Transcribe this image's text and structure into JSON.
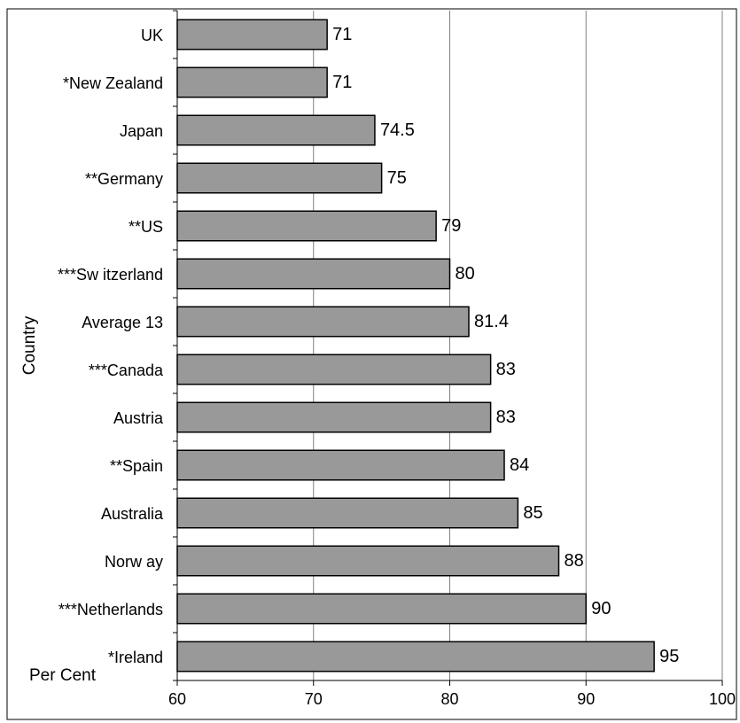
{
  "chart_data": {
    "type": "bar",
    "orientation": "horizontal",
    "title": "",
    "xlabel": "Per Cent",
    "ylabel": "Country",
    "xlim": [
      60,
      100
    ],
    "xticks": [
      60,
      70,
      80,
      90,
      100
    ],
    "grid": "vertical",
    "legend": "none",
    "bar_color": "#999999",
    "bar_edge_color": "#000000",
    "categories": [
      "UK",
      "*New Zealand",
      "Japan",
      "**Germany",
      "**US",
      "***Sw itzerland",
      "Average 13",
      "***Canada",
      "Austria",
      "**Spain",
      "Australia",
      "Norw ay",
      "***Netherlands",
      "*Ireland"
    ],
    "values": [
      71,
      71,
      74.5,
      75,
      79,
      80,
      81.4,
      83,
      83,
      84,
      85,
      88,
      90,
      95
    ],
    "value_labels": [
      "71",
      "71",
      "74.5",
      "75",
      "79",
      "80",
      "81.4",
      "83",
      "83",
      "84",
      "85",
      "88",
      "90",
      "95"
    ]
  }
}
